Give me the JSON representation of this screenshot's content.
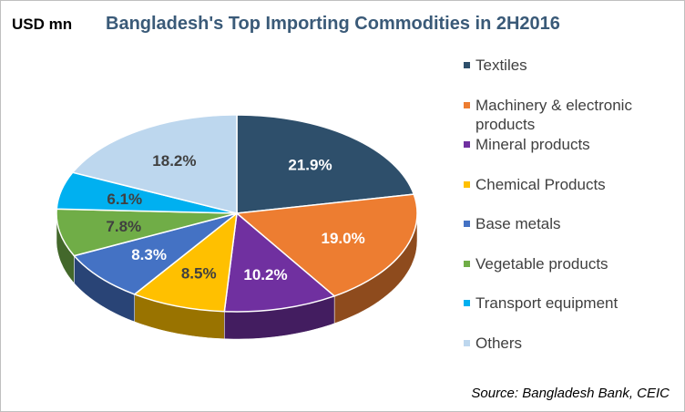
{
  "header": {
    "unit": "USD mn",
    "title": "Bangladesh's Top Importing Commodities in 2H2016"
  },
  "source": "Source: Bangladesh Bank, CEIC",
  "chart_data": {
    "type": "pie",
    "title": "Bangladesh's Top Importing Commodities in 2H2016",
    "unit": "USD mn",
    "style": "3d",
    "legend_position": "right",
    "categories": [
      "Textiles",
      "Machinery & electronic products",
      "Mineral products",
      "Chemical Products",
      "Base metals",
      "Vegetable products",
      "Transport equipment",
      "Others"
    ],
    "values": [
      21.9,
      19.0,
      10.2,
      8.5,
      8.3,
      7.8,
      6.1,
      18.2
    ],
    "labels": [
      "21.9%",
      "19.0%",
      "10.2%",
      "8.5%",
      "8.3%",
      "7.8%",
      "6.1%",
      "18.2%"
    ],
    "colors": [
      "#2e4f6b",
      "#ed7d31",
      "#7030a0",
      "#ffc000",
      "#4472c4",
      "#70ad47",
      "#00b0f0",
      "#bdd7ee"
    ]
  }
}
